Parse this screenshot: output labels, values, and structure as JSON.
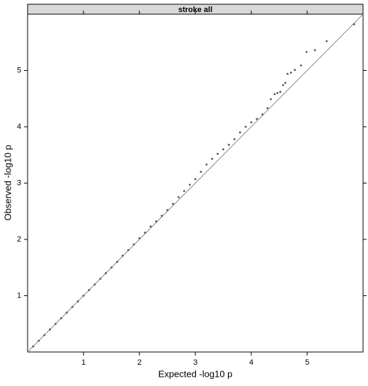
{
  "chart_data": {
    "type": "scatter",
    "strip_title": "stroke all",
    "x_label": "Expected -log10 p",
    "y_label": "Observed -log10 p",
    "x": [
      0.1,
      0.2,
      0.3,
      0.4,
      0.5,
      0.6,
      0.7,
      0.8,
      0.9,
      1.0,
      1.1,
      1.2,
      1.3,
      1.4,
      1.5,
      1.6,
      1.7,
      1.8,
      1.9,
      2.0,
      2.1,
      2.2,
      2.3,
      2.4,
      2.5,
      2.6,
      2.7,
      2.8,
      2.9,
      3.0,
      3.1,
      3.2,
      3.3,
      3.4,
      3.5,
      3.6,
      3.7,
      3.8,
      3.9,
      4.0,
      4.1,
      4.2,
      4.29,
      4.35,
      4.42,
      4.47,
      4.52,
      4.57,
      4.61,
      4.65,
      4.71,
      4.78,
      4.89,
      4.99,
      5.14,
      5.35,
      5.84
    ],
    "y": [
      0.1,
      0.2,
      0.3,
      0.4,
      0.5,
      0.6,
      0.7,
      0.8,
      0.9,
      1.0,
      1.1,
      1.2,
      1.3,
      1.4,
      1.5,
      1.6,
      1.71,
      1.81,
      1.91,
      2.02,
      2.12,
      2.23,
      2.32,
      2.42,
      2.52,
      2.63,
      2.75,
      2.86,
      2.97,
      3.07,
      3.2,
      3.33,
      3.43,
      3.52,
      3.6,
      3.68,
      3.78,
      3.9,
      4.0,
      4.08,
      4.14,
      4.22,
      4.33,
      4.49,
      4.58,
      4.6,
      4.62,
      4.74,
      4.78,
      4.94,
      4.96,
      5.01,
      5.09,
      5.33,
      5.36,
      5.52,
      5.82
    ],
    "color": "#555555",
    "xlim": [
      0,
      6.0
    ],
    "ylim": [
      0,
      6.0
    ],
    "xticks": [
      1,
      2,
      3,
      4,
      5
    ],
    "yticks": [
      1,
      2,
      3,
      4,
      5
    ]
  }
}
